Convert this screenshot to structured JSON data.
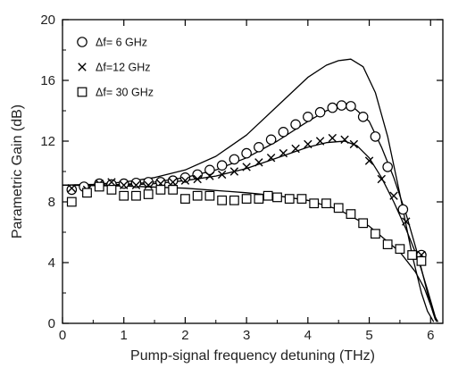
{
  "chart_data": {
    "type": "scatter",
    "xlabel": "Pump-signal frequency detuning (THz)",
    "ylabel": "Parametric Gain (dB)",
    "xlim": [
      0,
      6.2
    ],
    "ylim": [
      0,
      20
    ],
    "x_ticks": [
      "0",
      "1",
      "2",
      "3",
      "4",
      "5",
      "6"
    ],
    "y_ticks": [
      "0",
      "4",
      "8",
      "12",
      "16",
      "20"
    ],
    "grid": false,
    "legend_position": "top-left",
    "series": [
      {
        "name": "Δf= 6 GHz",
        "marker": "circle",
        "x": [
          0.15,
          0.35,
          0.6,
          0.8,
          1.0,
          1.2,
          1.4,
          1.6,
          1.8,
          2.0,
          2.2,
          2.4,
          2.6,
          2.8,
          3.0,
          3.2,
          3.4,
          3.6,
          3.8,
          4.0,
          4.2,
          4.4,
          4.55,
          4.7,
          4.9,
          5.1,
          5.3,
          5.55,
          5.85
        ],
        "y": [
          8.8,
          9.0,
          9.2,
          9.15,
          9.2,
          9.25,
          9.3,
          9.3,
          9.4,
          9.6,
          9.8,
          10.1,
          10.4,
          10.8,
          11.2,
          11.6,
          12.1,
          12.6,
          13.1,
          13.6,
          13.9,
          14.2,
          14.35,
          14.3,
          13.6,
          12.3,
          10.3,
          7.5,
          4.5
        ]
      },
      {
        "name": "Δf=12 GHz",
        "marker": "cross",
        "x": [
          0.15,
          0.4,
          0.6,
          0.8,
          1.0,
          1.2,
          1.4,
          1.6,
          1.8,
          2.0,
          2.2,
          2.4,
          2.6,
          2.8,
          3.0,
          3.2,
          3.4,
          3.6,
          3.8,
          4.0,
          4.2,
          4.4,
          4.6,
          4.75,
          5.0,
          5.2,
          5.4,
          5.6,
          5.85
        ],
        "y": [
          8.9,
          8.8,
          9.2,
          9.3,
          9.1,
          9.1,
          9.1,
          9.2,
          9.3,
          9.4,
          9.5,
          9.7,
          9.8,
          10.0,
          10.3,
          10.6,
          10.9,
          11.2,
          11.5,
          11.8,
          12.0,
          12.2,
          12.1,
          11.8,
          10.7,
          9.5,
          8.4,
          6.7,
          4.5
        ]
      },
      {
        "name": "Δf= 30 GHz",
        "marker": "square",
        "x": [
          0.15,
          0.4,
          0.6,
          0.8,
          1.0,
          1.2,
          1.4,
          1.6,
          1.8,
          2.0,
          2.2,
          2.4,
          2.6,
          2.8,
          3.0,
          3.2,
          3.35,
          3.5,
          3.7,
          3.9,
          4.1,
          4.3,
          4.5,
          4.7,
          4.9,
          5.1,
          5.3,
          5.5,
          5.7,
          5.85
        ],
        "y": [
          8.0,
          8.6,
          9.0,
          8.8,
          8.4,
          8.4,
          8.5,
          8.8,
          8.8,
          8.2,
          8.4,
          8.4,
          8.1,
          8.1,
          8.2,
          8.2,
          8.4,
          8.3,
          8.2,
          8.2,
          7.9,
          7.9,
          7.6,
          7.2,
          6.6,
          5.9,
          5.2,
          4.9,
          4.5,
          4.1
        ]
      }
    ],
    "theory_curves": {
      "style": "solid black lines",
      "curves": [
        {
          "x": [
            0,
            0.5,
            1.0,
            1.5,
            2.0,
            2.5,
            3.0,
            3.5,
            4.0,
            4.3,
            4.5,
            4.7,
            4.9,
            5.1,
            5.3,
            5.5,
            5.7,
            5.85,
            5.95,
            6.05
          ],
          "y": [
            9.1,
            9.15,
            9.3,
            9.6,
            10.1,
            11.0,
            12.4,
            14.3,
            16.2,
            17.0,
            17.3,
            17.4,
            16.9,
            15.2,
            12.3,
            8.5,
            4.5,
            2.0,
            0.8,
            0.1
          ]
        },
        {
          "x": [
            0,
            0.5,
            1.0,
            1.5,
            2.0,
            2.5,
            3.0,
            3.5,
            4.0,
            4.3,
            4.55,
            4.75,
            5.0,
            5.2,
            5.4,
            5.6,
            5.8,
            5.95,
            6.05,
            6.12
          ],
          "y": [
            9.1,
            9.1,
            9.15,
            9.3,
            9.6,
            10.1,
            10.9,
            12.0,
            13.3,
            14.0,
            14.3,
            14.2,
            13.3,
            11.6,
            9.6,
            7.2,
            4.4,
            2.0,
            0.6,
            0.1
          ]
        },
        {
          "x": [
            0,
            0.5,
            1.0,
            1.5,
            2.0,
            2.5,
            3.0,
            3.5,
            4.0,
            4.3,
            4.6,
            4.8,
            5.0,
            5.2,
            5.4,
            5.6,
            5.8,
            5.95,
            6.05,
            6.1
          ],
          "y": [
            9.1,
            9.1,
            9.1,
            9.2,
            9.4,
            9.7,
            10.2,
            10.9,
            11.6,
            11.9,
            12.0,
            11.7,
            10.9,
            9.6,
            8.0,
            6.2,
            4.2,
            2.2,
            0.8,
            0.1
          ]
        },
        {
          "x": [
            0,
            1.0,
            2.0,
            3.0,
            3.5,
            4.0,
            4.5,
            5.0,
            5.5,
            5.75,
            5.9,
            6.0,
            6.08
          ],
          "y": [
            9.1,
            9.05,
            8.9,
            8.6,
            8.4,
            8.1,
            7.5,
            6.4,
            4.7,
            3.4,
            2.3,
            1.2,
            0.2
          ]
        }
      ]
    }
  }
}
